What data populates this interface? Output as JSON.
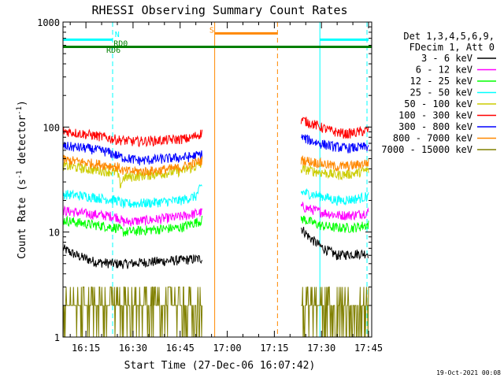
{
  "chart_data": {
    "type": "line",
    "title": "RHESSI Observing Summary Count Rates",
    "xlabel": "Start Time (27-Dec-06 16:07:42)",
    "ylabel_main": "Count Rate (s",
    "ylabel_sup1": "-1",
    "ylabel_mid": " detector",
    "ylabel_sup2": "-1",
    "ylabel_end": ")",
    "y_scale": "log",
    "ylim": [
      1,
      1000
    ],
    "xlim_minutes_after_16_00": [
      7.7,
      106
    ],
    "x_ticks": [
      {
        "minute": 15,
        "label": "16:15"
      },
      {
        "minute": 30,
        "label": "16:30"
      },
      {
        "minute": 45,
        "label": "16:45"
      },
      {
        "minute": 60,
        "label": "17:00"
      },
      {
        "minute": 75,
        "label": "17:15"
      },
      {
        "minute": 90,
        "label": "17:30"
      },
      {
        "minute": 105,
        "label": "17:45"
      }
    ],
    "y_ticks": [
      {
        "value": 1,
        "label": "1"
      },
      {
        "value": 10,
        "label": "10"
      },
      {
        "value": 100,
        "label": "100"
      },
      {
        "value": 1000,
        "label": "1000"
      }
    ],
    "legend": {
      "header1": "Det 1,3,4,5,6,9,",
      "header2": "FDecim 1, Att 0",
      "placement": "right"
    },
    "series": [
      {
        "name": "3 - 6 keV",
        "color": "#000000",
        "segments": [
          {
            "x": [
              7.7,
              12,
              18,
              24,
              28,
              35,
              45,
              52
            ],
            "y": [
              7.0,
              6.0,
              5.2,
              5.0,
              5.0,
              5.2,
              5.4,
              5.6
            ]
          },
          {
            "x": [
              83.5,
              86,
              90,
              95,
              100,
              105
            ],
            "y": [
              11.0,
              9.0,
              7.2,
              6.0,
              6.2,
              6.3
            ]
          }
        ]
      },
      {
        "name": "6 - 12 keV",
        "color": "#ff00ff",
        "segments": [
          {
            "x": [
              7.7,
              15,
              25,
              27,
              35,
              45,
              52
            ],
            "y": [
              16.0,
              15.0,
              14.0,
              12.5,
              13.0,
              14.0,
              15.5
            ]
          },
          {
            "x": [
              83.5,
              90,
              95,
              100,
              105
            ],
            "y": [
              17.5,
              15.5,
              14.5,
              14.5,
              15.5
            ]
          }
        ]
      },
      {
        "name": "12 - 25 keV",
        "color": "#00ff00",
        "segments": [
          {
            "x": [
              7.7,
              15,
              25,
              27,
              35,
              45,
              52
            ],
            "y": [
              13.0,
              12.0,
              11.0,
              10.0,
              10.5,
              11.0,
              13.0
            ]
          },
          {
            "x": [
              83.5,
              90,
              95,
              100,
              105
            ],
            "y": [
              13.5,
              11.5,
              11.0,
              11.0,
              11.8
            ]
          }
        ]
      },
      {
        "name": "25 - 50 keV",
        "color": "#00ffff",
        "segments": [
          {
            "x": [
              7.7,
              15,
              25,
              27,
              35,
              45,
              50,
              52
            ],
            "y": [
              23.0,
              22.0,
              20.0,
              18.5,
              19.0,
              20.0,
              22.0,
              28.0
            ]
          },
          {
            "x": [
              83.5,
              90,
              95,
              100,
              105
            ],
            "y": [
              24.0,
              22.0,
              20.0,
              20.5,
              22.0
            ]
          }
        ]
      },
      {
        "name": "50 - 100 keV",
        "color": "#cccc00",
        "segments": [
          {
            "x": [
              7.7,
              15,
              25,
              26,
              27,
              35,
              45,
              52
            ],
            "y": [
              43.0,
              40.0,
              37.0,
              28.0,
              33.0,
              35.0,
              38.0,
              44.0
            ]
          },
          {
            "x": [
              83.5,
              90,
              95,
              100,
              105
            ],
            "y": [
              40.0,
              37.0,
              35.0,
              36.0,
              39.0
            ]
          }
        ]
      },
      {
        "name": "100 - 300 keV",
        "color": "#ff0000",
        "segments": [
          {
            "x": [
              7.7,
              12,
              18,
              25,
              30,
              40,
              48,
              52
            ],
            "y": [
              92.0,
              88.0,
              83.0,
              76.0,
              73.0,
              75.0,
              78.0,
              88.0
            ]
          },
          {
            "x": [
              83.5,
              88,
              93,
              98,
              105
            ],
            "y": [
              118.0,
              105.0,
              92.0,
              86.0,
              93.0
            ]
          }
        ]
      },
      {
        "name": "300 - 800 keV",
        "color": "#0000ff",
        "segments": [
          {
            "x": [
              7.7,
              15,
              22,
              26,
              32,
              40,
              48,
              52
            ],
            "y": [
              66.0,
              63.0,
              58.0,
              52.0,
              48.0,
              50.0,
              52.0,
              55.0
            ]
          },
          {
            "x": [
              83.5,
              88,
              93,
              98,
              105
            ],
            "y": [
              80.0,
              72.0,
              66.0,
              63.0,
              65.0
            ]
          }
        ]
      },
      {
        "name": "800 - 7000 keV",
        "color": "#ff8800",
        "segments": [
          {
            "x": [
              7.7,
              15,
              25,
              27,
              35,
              45,
              52
            ],
            "y": [
              49.0,
              46.0,
              42.0,
              38.0,
              38.0,
              41.0,
              48.0
            ]
          },
          {
            "x": [
              83.5,
              90,
              95,
              100,
              105
            ],
            "y": [
              49.0,
              45.0,
              42.0,
              43.0,
              46.0
            ]
          }
        ]
      },
      {
        "name": "7000 - 15000 keV",
        "color": "#808000",
        "segments": [
          {
            "x": [
              7.7,
              52
            ],
            "y": [
              1.5,
              1.5
            ]
          },
          {
            "x": [
              83.5,
              105
            ],
            "y": [
              1.5,
              1.5
            ]
          }
        ]
      }
    ],
    "flag_bars": [
      {
        "label": "",
        "color": "#00ffff",
        "y": 680,
        "x": [
          7.7,
          23.5
        ]
      },
      {
        "label": "",
        "color": "#00ffff",
        "y": 680,
        "x": [
          89.5,
          105
        ]
      },
      {
        "label": "RD0",
        "color": "#008000",
        "y": 580,
        "x": [
          7.7,
          106
        ]
      },
      {
        "label": "S",
        "color": "#ff8800",
        "y": 780,
        "x": [
          56,
          76
        ]
      }
    ],
    "flag_labels": [
      {
        "text": "N",
        "color": "#00ffff",
        "x": 24.2,
        "y": 720
      },
      {
        "text": "RD6",
        "color": "#008000",
        "x": 21.5,
        "y": 510
      },
      {
        "text": "RD0",
        "color": "#008000",
        "x": 23.8,
        "y": 590
      },
      {
        "text": "S",
        "color": "#ff8800",
        "x": 54.3,
        "y": 790
      }
    ],
    "vertical_lines": [
      {
        "x": 23.5,
        "color": "#00ffff",
        "style": "dashed"
      },
      {
        "x": 104.5,
        "color": "#00ffff",
        "style": "dashed"
      },
      {
        "x": 89.5,
        "color": "#00ffff",
        "style": "solid"
      },
      {
        "x": 56,
        "color": "#ff8800",
        "style": "solid"
      },
      {
        "x": 76,
        "color": "#ff8800",
        "style": "dashed"
      }
    ],
    "footer_timestamp": "19-Oct-2021 00:08"
  }
}
